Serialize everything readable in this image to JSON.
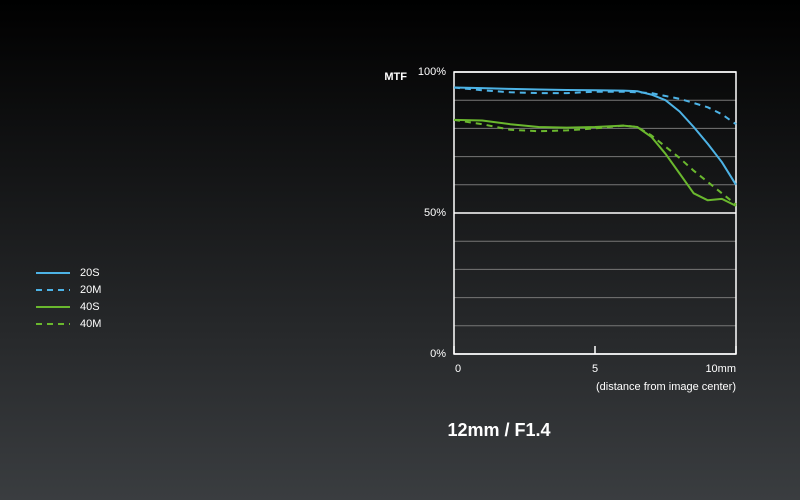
{
  "chart_data": {
    "type": "line",
    "title": "12mm / F1.4",
    "y_label": "MTF",
    "x_label": "(distance from image center)",
    "x": [
      0,
      1,
      2,
      3,
      4,
      5,
      6,
      6.5,
      7,
      7.5,
      8,
      8.5,
      9,
      9.5,
      10
    ],
    "series": [
      {
        "name": "20S",
        "color": "#4db3e6",
        "style": "solid",
        "values": [
          94.5,
          94.3,
          94,
          93.8,
          93.6,
          93.5,
          93.4,
          93.2,
          92,
          90,
          86,
          80.5,
          74.5,
          68,
          60
        ]
      },
      {
        "name": "20M",
        "color": "#4db3e6",
        "style": "dashed",
        "values": [
          94.5,
          93.5,
          92.8,
          92.5,
          92.5,
          93,
          93,
          92.8,
          92.5,
          91.5,
          90.5,
          89,
          87.5,
          85,
          81.5
        ]
      },
      {
        "name": "40S",
        "color": "#6ab82e",
        "style": "solid",
        "values": [
          83,
          82.8,
          81.5,
          80.5,
          80.3,
          80.5,
          81,
          80.5,
          77,
          71,
          64,
          57,
          54.5,
          55,
          52.5
        ]
      },
      {
        "name": "40M",
        "color": "#6ab82e",
        "style": "dashed",
        "values": [
          83,
          81.5,
          79.5,
          79,
          79.3,
          80,
          81,
          80.5,
          77.5,
          73.5,
          69.5,
          65,
          61,
          57,
          53
        ]
      }
    ],
    "xlim": [
      0,
      10
    ],
    "xticks": [
      0,
      5,
      {
        "value": 10,
        "label": "10mm"
      }
    ],
    "ylim": [
      0,
      100
    ],
    "yticks": [
      {
        "value": 0,
        "label": "0%"
      },
      {
        "value": 50,
        "label": "50%"
      },
      {
        "value": 100,
        "label": "100%"
      }
    ],
    "yminorticks": [
      10,
      20,
      30,
      40,
      60,
      70,
      80,
      90
    ],
    "grid": true,
    "legend": "left"
  }
}
